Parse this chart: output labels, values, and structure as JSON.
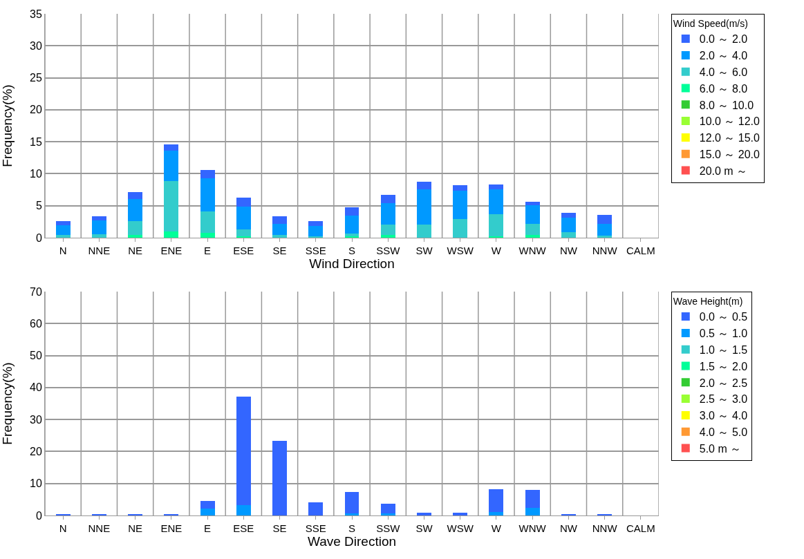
{
  "chart_data": [
    {
      "type": "bar",
      "stacked": true,
      "xlabel": "Wind Direction",
      "ylabel": "Frequency(%)",
      "legend_title": "Wind Speed(m/s)",
      "legend": "right",
      "grid": true,
      "ylim": [
        0,
        35
      ],
      "yticks": [
        0,
        5,
        10,
        15,
        20,
        25,
        30,
        35
      ],
      "categories": [
        "N",
        "NNE",
        "NE",
        "ENE",
        "E",
        "ESE",
        "SE",
        "SSE",
        "S",
        "SSW",
        "SW",
        "WSW",
        "W",
        "WNW",
        "NW",
        "NNW",
        "CALM"
      ],
      "series": [
        {
          "name": "20.0 m ～",
          "color": "#ff5050",
          "values": [
            0,
            0,
            0,
            0,
            0,
            0,
            0,
            0,
            0,
            0,
            0,
            0,
            0,
            0,
            0,
            0,
            0
          ]
        },
        {
          "name": "15.0 ～ 20.0",
          "color": "#ff9933",
          "values": [
            0,
            0,
            0,
            0,
            0,
            0,
            0,
            0,
            0,
            0,
            0,
            0,
            0,
            0,
            0,
            0,
            0
          ]
        },
        {
          "name": "12.0 ～ 15.0",
          "color": "#ffff00",
          "values": [
            0,
            0,
            0,
            0,
            0,
            0,
            0,
            0,
            0,
            0,
            0,
            0,
            0,
            0,
            0,
            0,
            0
          ]
        },
        {
          "name": "10.0 ～ 12.0",
          "color": "#99ff33",
          "values": [
            0,
            0,
            0,
            0,
            0,
            0,
            0,
            0,
            0,
            0,
            0,
            0,
            0,
            0,
            0,
            0,
            0
          ]
        },
        {
          "name": "8.0 ～ 10.0",
          "color": "#33cc33",
          "values": [
            0,
            0,
            0,
            0,
            0,
            0,
            0,
            0,
            0,
            0,
            0,
            0,
            0,
            0,
            0,
            0,
            0
          ]
        },
        {
          "name": "6.0 ～ 8.0",
          "color": "#00ff99",
          "values": [
            0,
            0,
            0.4,
            1.0,
            0.8,
            0.2,
            0,
            0,
            0.2,
            0.4,
            0,
            0,
            0.2,
            0.4,
            0,
            0,
            0
          ]
        },
        {
          "name": "4.0 ～ 6.0",
          "color": "#33cccc",
          "values": [
            0.4,
            0.5,
            2.2,
            7.9,
            3.3,
            1.1,
            0.4,
            0.2,
            0.5,
            1.6,
            2.1,
            2.9,
            3.5,
            1.8,
            0.9,
            0.3,
            0
          ]
        },
        {
          "name": "2.0 ～ 4.0",
          "color": "#0099ff",
          "values": [
            1.5,
            2.2,
            3.4,
            4.7,
            5.2,
            3.6,
            1.8,
            1.6,
            2.8,
            3.4,
            5.5,
            4.5,
            3.9,
            2.9,
            2.2,
            1.9,
            0
          ]
        },
        {
          "name": "0.0 ～ 2.0",
          "color": "#3366ff",
          "values": [
            0.7,
            0.6,
            1.1,
            1.0,
            1.3,
            1.4,
            1.2,
            0.8,
            1.2,
            1.3,
            1.1,
            0.8,
            0.7,
            0.5,
            0.8,
            1.4,
            0
          ]
        }
      ]
    },
    {
      "type": "bar",
      "stacked": true,
      "xlabel": "Wave Direction",
      "ylabel": "Frequency(%)",
      "legend_title": "Wave Height(m)",
      "legend": "right",
      "grid": true,
      "ylim": [
        0,
        70
      ],
      "yticks": [
        0,
        10,
        20,
        30,
        40,
        50,
        60,
        70
      ],
      "categories": [
        "N",
        "NNE",
        "NE",
        "ENE",
        "E",
        "ESE",
        "SE",
        "SSE",
        "S",
        "SSW",
        "SW",
        "WSW",
        "W",
        "WNW",
        "NW",
        "NNW",
        "CALM"
      ],
      "series": [
        {
          "name": "5.0 m ～",
          "color": "#ff5050",
          "values": [
            0,
            0,
            0,
            0,
            0,
            0,
            0,
            0,
            0,
            0,
            0,
            0,
            0,
            0,
            0,
            0,
            0
          ]
        },
        {
          "name": "4.0 ～ 5.0",
          "color": "#ff9933",
          "values": [
            0,
            0,
            0,
            0,
            0,
            0,
            0,
            0,
            0,
            0,
            0,
            0,
            0,
            0,
            0,
            0,
            0
          ]
        },
        {
          "name": "3.0 ～ 4.0",
          "color": "#ffff00",
          "values": [
            0,
            0,
            0,
            0,
            0,
            0,
            0,
            0,
            0,
            0,
            0,
            0,
            0,
            0,
            0,
            0,
            0
          ]
        },
        {
          "name": "2.5 ～ 3.0",
          "color": "#99ff33",
          "values": [
            0,
            0,
            0,
            0,
            0,
            0,
            0,
            0,
            0,
            0,
            0,
            0,
            0,
            0,
            0,
            0,
            0
          ]
        },
        {
          "name": "2.0 ～ 2.5",
          "color": "#33cc33",
          "values": [
            0,
            0,
            0,
            0,
            0,
            0,
            0,
            0,
            0,
            0,
            0,
            0,
            0,
            0,
            0,
            0,
            0
          ]
        },
        {
          "name": "1.5 ～ 2.0",
          "color": "#00ff99",
          "values": [
            0,
            0,
            0,
            0,
            0,
            0,
            0,
            0,
            0,
            0,
            0,
            0,
            0,
            0,
            0,
            0,
            0
          ]
        },
        {
          "name": "1.0 ～ 1.5",
          "color": "#33cccc",
          "values": [
            0,
            0,
            0,
            0,
            0,
            0,
            0,
            0,
            0,
            0,
            0,
            0,
            0,
            0,
            0,
            0,
            0
          ]
        },
        {
          "name": "0.5 ～ 1.0",
          "color": "#0099ff",
          "values": [
            0,
            0,
            0,
            0,
            2.2,
            3.2,
            0.1,
            0.1,
            0.6,
            0.6,
            0,
            0,
            1.1,
            2.4,
            0,
            0,
            0
          ]
        },
        {
          "name": "0.0 ～ 0.5",
          "color": "#3366ff",
          "values": [
            0.3,
            0.3,
            0.3,
            0.3,
            2.4,
            33.9,
            23.2,
            3.9,
            6.8,
            3.1,
            0.9,
            0.9,
            7.2,
            5.6,
            0.3,
            0.3,
            0
          ]
        }
      ]
    }
  ]
}
